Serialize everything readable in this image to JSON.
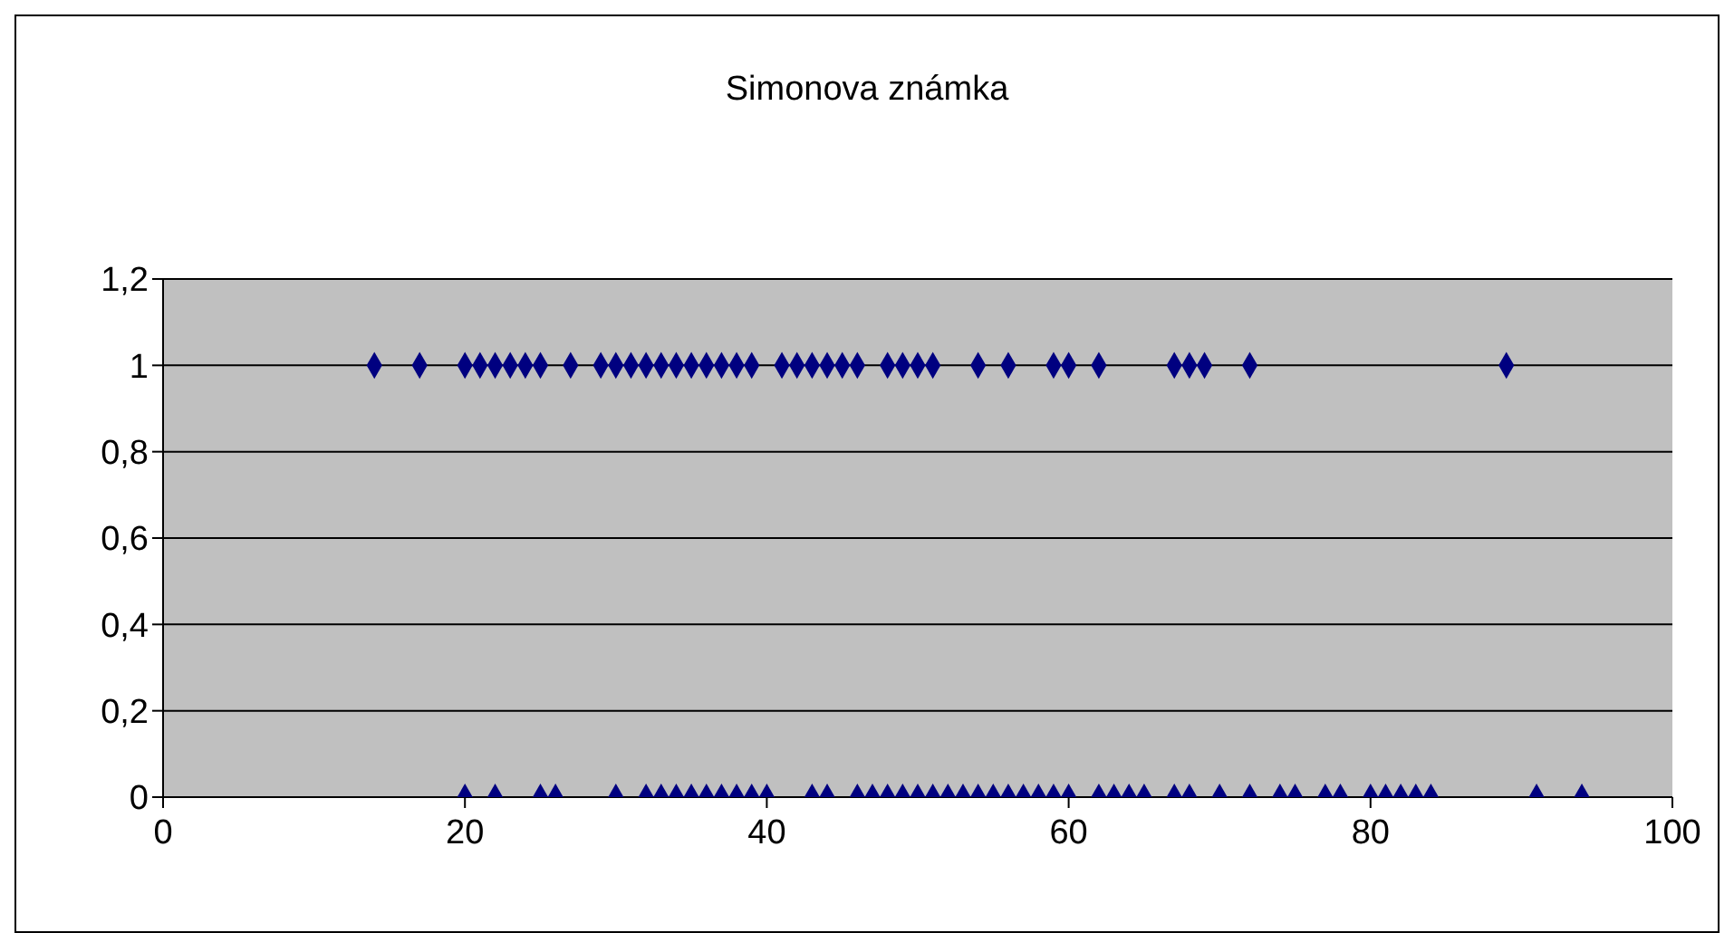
{
  "chart_data": {
    "type": "scatter",
    "title": "Simonova známka",
    "series": [
      {
        "color": "#000080",
        "x": [
          14,
          17,
          20,
          21,
          22,
          23,
          24,
          25,
          27,
          29,
          30,
          31,
          32,
          33,
          34,
          35,
          36,
          37,
          38,
          39,
          41,
          42,
          43,
          44,
          45,
          46,
          48,
          49,
          50,
          51,
          54,
          56,
          59,
          60,
          62,
          67,
          68,
          69,
          72,
          89,
          20,
          22,
          25,
          26,
          30,
          32,
          33,
          34,
          35,
          36,
          37,
          38,
          39,
          40,
          43,
          44,
          46,
          47,
          48,
          49,
          50,
          51,
          52,
          53,
          54,
          55,
          56,
          57,
          58,
          59,
          60,
          62,
          63,
          64,
          65,
          67,
          68,
          70,
          72,
          74,
          75,
          77,
          78,
          80,
          81,
          82,
          83,
          84,
          91,
          94
        ],
        "values": [
          1,
          1,
          1,
          1,
          1,
          1,
          1,
          1,
          1,
          1,
          1,
          1,
          1,
          1,
          1,
          1,
          1,
          1,
          1,
          1,
          1,
          1,
          1,
          1,
          1,
          1,
          1,
          1,
          1,
          1,
          1,
          1,
          1,
          1,
          1,
          1,
          1,
          1,
          1,
          1,
          0,
          0,
          0,
          0,
          0,
          0,
          0,
          0,
          0,
          0,
          0,
          0,
          0,
          0,
          0,
          0,
          0,
          0,
          0,
          0,
          0,
          0,
          0,
          0,
          0,
          0,
          0,
          0,
          0,
          0,
          0,
          0,
          0,
          0,
          0,
          0,
          0,
          0,
          0,
          0,
          0,
          0,
          0,
          0,
          0,
          0,
          0,
          0,
          0,
          0
        ]
      }
    ],
    "xlim": [
      0,
      100
    ],
    "xticks": [
      0,
      20,
      40,
      60,
      80,
      100
    ],
    "ylim": [
      0,
      1.2
    ],
    "yticks": [
      0,
      {
        "value": 0.2,
        "label": "0,2"
      },
      {
        "value": 0.4,
        "label": "0,4"
      },
      {
        "value": 0.6,
        "label": "0,6"
      },
      {
        "value": 0.8,
        "label": "0,8"
      },
      1,
      {
        "value": 1.2,
        "label": "1,2"
      }
    ],
    "grid": "y",
    "legend": false,
    "marker": "diamond"
  }
}
